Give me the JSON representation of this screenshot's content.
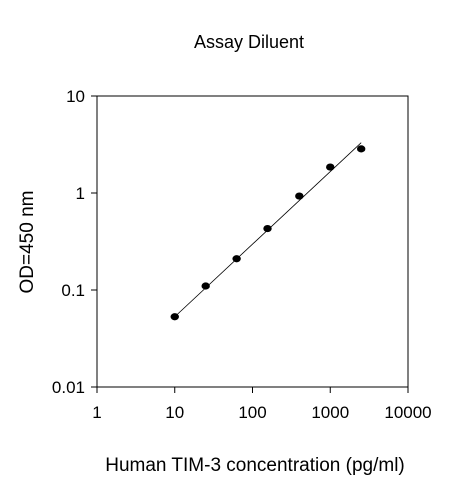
{
  "chart_data": {
    "type": "scatter",
    "title": "Assay Diluent",
    "xlabel": "Human TIM-3 concentration (pg/ml)",
    "ylabel": "OD=450 nm",
    "xscale": "log",
    "yscale": "log",
    "xlim": [
      1,
      10000
    ],
    "ylim": [
      0.01,
      10
    ],
    "x_ticks": [
      "1",
      "10",
      "100",
      "1000",
      "10000"
    ],
    "y_ticks": [
      "0.01",
      "0.1",
      "1",
      "10"
    ],
    "grid": false,
    "legend": "none",
    "series": [
      {
        "x": [
          10,
          25,
          62.5,
          156,
          400,
          1000,
          2500
        ],
        "y": [
          0.053,
          0.11,
          0.21,
          0.43,
          0.93,
          1.85,
          2.85
        ]
      }
    ],
    "fit_line": {
      "x": [
        10,
        2500
      ],
      "y": [
        0.053,
        3.3
      ]
    },
    "colors": {
      "points": "#000000",
      "line": "#000000",
      "axis": "#000000"
    }
  }
}
